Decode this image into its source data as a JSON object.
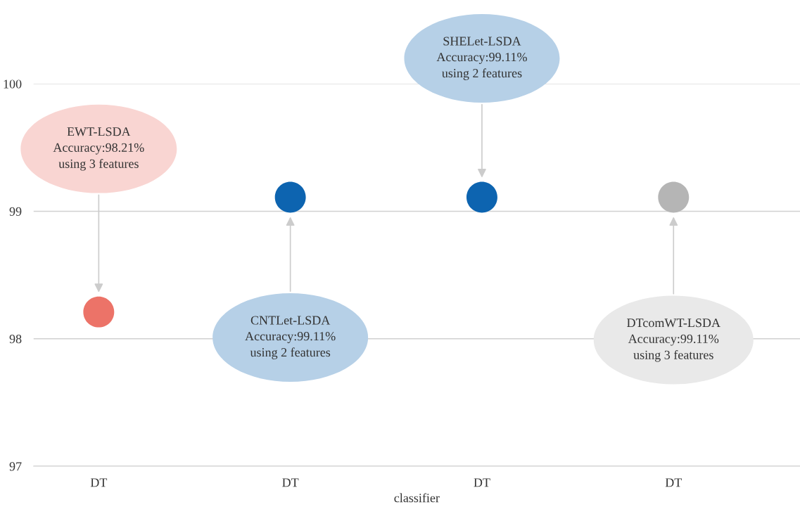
{
  "chart_data": {
    "type": "scatter",
    "xlabel": "classifier",
    "categories": [
      "DT",
      "DT",
      "DT",
      "DT"
    ],
    "values": [
      98.21,
      99.11,
      99.11,
      99.11
    ],
    "colors": [
      "#ec7368",
      "#0d64b0",
      "#0d64b0",
      "#b5b5b5"
    ],
    "ylim": [
      97,
      100
    ],
    "yticks": [
      97,
      98,
      99,
      100
    ],
    "grid": "y",
    "legend": false,
    "marker": "circle",
    "annotations": [
      "EWT-LSDA\nAccuracy:98.21%\nusing 3 features",
      "CNTLet-LSDA\nAccuracy:99.11%\nusing 2 features",
      "SHELet-LSDA\nAccuracy:99.11%\nusing 2 features",
      "DTcomWT-LSDA\nAccuracy:99.11%\nusing 3 features"
    ]
  }
}
